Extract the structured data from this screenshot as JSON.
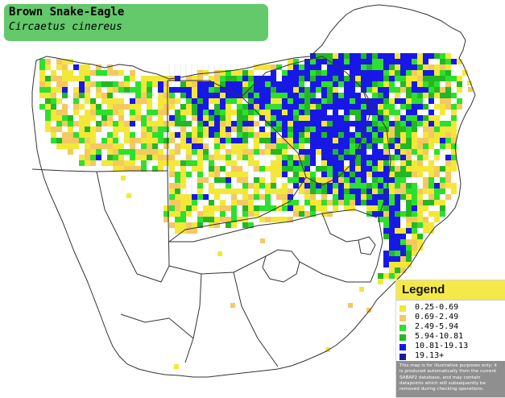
{
  "title": {
    "common_name": "Brown Snake-Eagle",
    "scientific_name": "Circaetus cinereus"
  },
  "legend": {
    "heading": "Legend",
    "items": [
      {
        "label": "0.25-0.69",
        "color": "#f3e838"
      },
      {
        "label": "0.69-2.49",
        "color": "#f5c861"
      },
      {
        "label": "2.49-5.94",
        "color": "#2de02d"
      },
      {
        "label": "5.94-10.81",
        "color": "#23b823"
      },
      {
        "label": "10.81-19.13",
        "color": "#1818e6"
      },
      {
        "label": "19.13+",
        "color": "#1a1a98"
      }
    ],
    "disclaimer": "This map is for illustrative purposes only; it is produced automatically from the current SABAP2 database, and may contain datapoints which will subsequently be removed during checking operations."
  },
  "map_colors": {
    "land": "#ffffff",
    "border": "#333333",
    "grid": "#cfd8ff"
  }
}
